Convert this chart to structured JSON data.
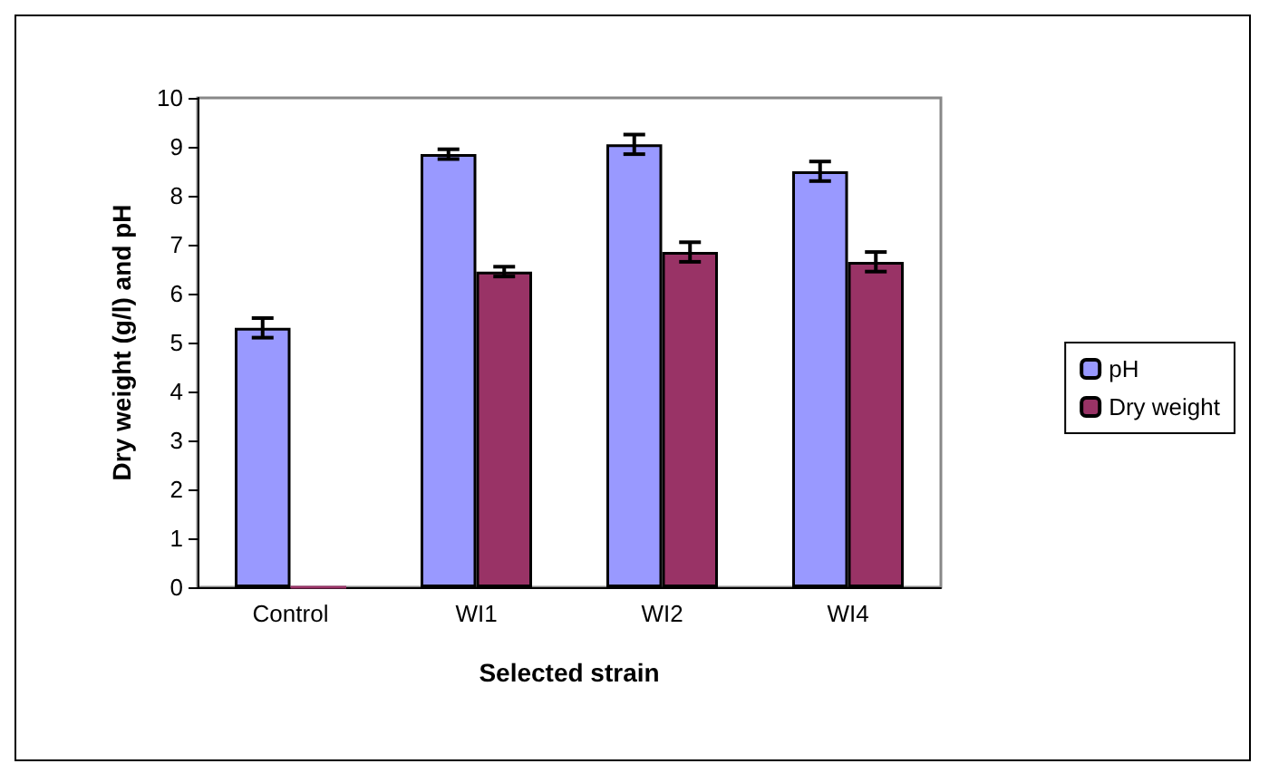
{
  "chart_data": {
    "type": "bar",
    "xlabel": "Selected strain",
    "ylabel": "Dry weight (g/l) and pH",
    "categories": [
      "Control",
      "WI1",
      "WI2",
      "WI4"
    ],
    "series": [
      {
        "name": "pH",
        "color": "#9999ff",
        "values": [
          5.3,
          8.85,
          9.05,
          8.5
        ],
        "errors": [
          0.2,
          0.1,
          0.2,
          0.2
        ]
      },
      {
        "name": "Dry weight",
        "color": "#993366",
        "values": [
          0,
          6.45,
          6.85,
          6.65
        ],
        "errors": [
          null,
          0.1,
          0.2,
          0.2
        ]
      }
    ],
    "ylim": [
      0,
      10
    ],
    "yticks": [
      0,
      1,
      2,
      3,
      4,
      5,
      6,
      7,
      8,
      9,
      10
    ],
    "grid": false,
    "legend": "right"
  }
}
